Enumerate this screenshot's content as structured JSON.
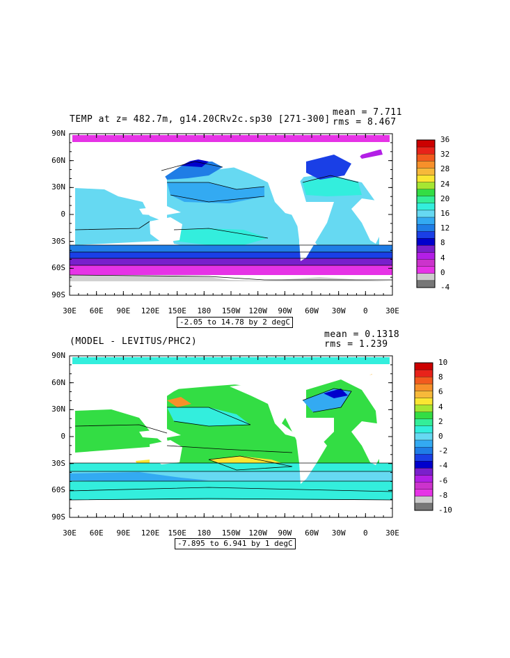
{
  "colors": {
    "land": "#ffffff",
    "frame": "#000000",
    "sea_ice_gray": "#cccccc"
  },
  "panel_top": {
    "title": "TEMP at z= 482.7m, g14.20CRv2c.sp30 [271-300]",
    "stats": {
      "mean": "mean = 7.711",
      "rms": "rms = 8.467"
    },
    "range_label": "-2.05 to 14.78 by 2 degC",
    "lat_labels": [
      "90N",
      "60N",
      "30N",
      "0",
      "30S",
      "60S",
      "90S"
    ],
    "lon_labels": [
      "30E",
      "60E",
      "90E",
      "120E",
      "150E",
      "180",
      "150W",
      "120W",
      "90W",
      "60W",
      "30W",
      "0",
      "30E"
    ],
    "colorbar": {
      "labels": [
        "36",
        "32",
        "28",
        "24",
        "20",
        "16",
        "12",
        "8",
        "4",
        "0",
        "-4"
      ],
      "colors": [
        "#cc0000",
        "#e8221a",
        "#f25a1e",
        "#f7902a",
        "#f7b93a",
        "#fbe632",
        "#a6e632",
        "#33dd44",
        "#33ee99",
        "#33eedd",
        "#66d9f2",
        "#33aaf2",
        "#1f7de6",
        "#1a3fe6",
        "#0000cc",
        "#7a1fcc",
        "#b31fe6",
        "#cc33cc",
        "#e633e6",
        "#cccccc",
        "#777777"
      ]
    }
  },
  "panel_bottom": {
    "title": "(MODEL - LEVITUS/PHC2)",
    "stats": {
      "mean": "mean = 0.1318",
      "rms": "rms = 1.239"
    },
    "range_label": "-7.895 to 6.941 by 1 degC",
    "lat_labels": [
      "90N",
      "60N",
      "30N",
      "0",
      "30S",
      "60S",
      "90S"
    ],
    "lon_labels": [
      "30E",
      "60E",
      "90E",
      "120E",
      "150E",
      "180",
      "150W",
      "120W",
      "90W",
      "60W",
      "30W",
      "0",
      "30E"
    ],
    "colorbar": {
      "labels": [
        "10",
        "8",
        "6",
        "4",
        "2",
        "0",
        "-2",
        "-4",
        "-6",
        "-8",
        "-10"
      ],
      "colors": [
        "#cc0000",
        "#e8221a",
        "#f25a1e",
        "#f7902a",
        "#f7b93a",
        "#fbe632",
        "#a6e632",
        "#33dd44",
        "#33ee99",
        "#33eedd",
        "#66d9f2",
        "#33aaf2",
        "#1f7de6",
        "#1a3fe6",
        "#0000cc",
        "#7a1fcc",
        "#b31fe6",
        "#cc33cc",
        "#e633e6",
        "#cccccc",
        "#777777"
      ]
    }
  }
}
